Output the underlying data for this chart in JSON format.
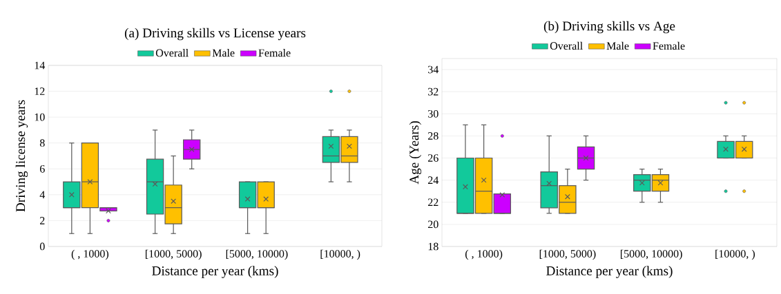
{
  "chart_data": [
    {
      "type": "box",
      "title": "(a) Driving skills vs License years",
      "xlabel": "Distance per year (kms)",
      "ylabel": "Driving license years",
      "categories": [
        "( , 1000)",
        "[1000, 5000)",
        "[5000, 10000)",
        "[10000, )"
      ],
      "ylim": [
        0,
        14
      ],
      "yticks": [
        0,
        2,
        4,
        6,
        8,
        10,
        12,
        14
      ],
      "grid": "y",
      "legend": "top",
      "series": [
        {
          "name": "Overall",
          "color": "#12c99b",
          "boxes": [
            {
              "low": 1,
              "q1": 3,
              "median": 3,
              "q3": 5,
              "high": 8,
              "mean": 4
            },
            {
              "low": 1,
              "q1": 2.5,
              "median": 5,
              "q3": 6.75,
              "high": 9,
              "mean": 4.83
            },
            {
              "low": 1,
              "q1": 3,
              "median": 3,
              "q3": 5,
              "high": 5,
              "mean": 3.67
            },
            {
              "low": 5,
              "q1": 6.5,
              "median": 7,
              "q3": 8.5,
              "high": 9,
              "mean": 7.75,
              "outliers": [
                12
              ]
            }
          ]
        },
        {
          "name": "Male",
          "color": "#ffc000",
          "boxes": [
            {
              "low": 1,
              "q1": 3,
              "median": 5,
              "q3": 8,
              "high": 8,
              "mean": 5
            },
            {
              "low": 1,
              "q1": 1.75,
              "median": 3,
              "q3": 4.75,
              "high": 7,
              "mean": 3.5
            },
            {
              "low": 1,
              "q1": 3,
              "median": 3,
              "q3": 5,
              "high": 5,
              "mean": 3.67
            },
            {
              "low": 5,
              "q1": 6.5,
              "median": 7,
              "q3": 8.5,
              "high": 9,
              "mean": 7.75,
              "outliers": [
                12
              ]
            }
          ]
        },
        {
          "name": "Female",
          "color": "#cc00ff",
          "boxes": [
            {
              "low": 2.75,
              "q1": 2.75,
              "median": 3,
              "q3": 3,
              "high": 3,
              "mean": 2.75,
              "outliers": [
                2
              ]
            },
            {
              "low": 6,
              "q1": 6.75,
              "median": 7.5,
              "q3": 8.25,
              "high": 9,
              "mean": 7.5
            },
            null,
            null
          ]
        }
      ]
    },
    {
      "type": "box",
      "title": "(b) Driving skills vs Age",
      "xlabel": "Distance per year (kms)",
      "ylabel": "Age (Years)",
      "categories": [
        "( , 1000)",
        "[1000, 5000)",
        "[5000, 10000)",
        "[10000, )"
      ],
      "ylim": [
        18,
        35
      ],
      "yticks": [
        18,
        20,
        22,
        24,
        26,
        28,
        30,
        32,
        34
      ],
      "grid": "y",
      "legend": "top",
      "series": [
        {
          "name": "Overall",
          "color": "#12c99b",
          "boxes": [
            {
              "low": 21,
              "q1": 21,
              "median": 21,
              "q3": 26,
              "high": 29,
              "mean": 23.4
            },
            {
              "low": 21,
              "q1": 21.5,
              "median": 23.5,
              "q3": 24.75,
              "high": 28,
              "mean": 23.7
            },
            {
              "low": 22,
              "q1": 23,
              "median": 24,
              "q3": 24.5,
              "high": 25,
              "mean": 23.75
            },
            {
              "low": 26,
              "q1": 26,
              "median": 26,
              "q3": 27.5,
              "high": 28,
              "mean": 26.8,
              "outliers": [
                23,
                31
              ]
            }
          ]
        },
        {
          "name": "Male",
          "color": "#ffc000",
          "boxes": [
            {
              "low": 21,
              "q1": 21,
              "median": 23,
              "q3": 26,
              "high": 29,
              "mean": 24
            },
            {
              "low": 21,
              "q1": 21,
              "median": 22,
              "q3": 23.5,
              "high": 25,
              "mean": 22.5
            },
            {
              "low": 22,
              "q1": 23,
              "median": 24,
              "q3": 24.5,
              "high": 25,
              "mean": 23.75
            },
            {
              "low": 26,
              "q1": 26,
              "median": 26,
              "q3": 27.5,
              "high": 28,
              "mean": 26.8,
              "outliers": [
                23,
                31
              ]
            }
          ]
        },
        {
          "name": "Female",
          "color": "#cc00ff",
          "boxes": [
            {
              "low": 21,
              "q1": 21,
              "median": 21,
              "q3": 22.75,
              "high": 22.75,
              "mean": 22.67,
              "outliers": [
                28
              ]
            },
            {
              "low": 24,
              "q1": 25,
              "median": 26,
              "q3": 27,
              "high": 28,
              "mean": 26
            },
            null,
            null
          ]
        }
      ]
    }
  ]
}
